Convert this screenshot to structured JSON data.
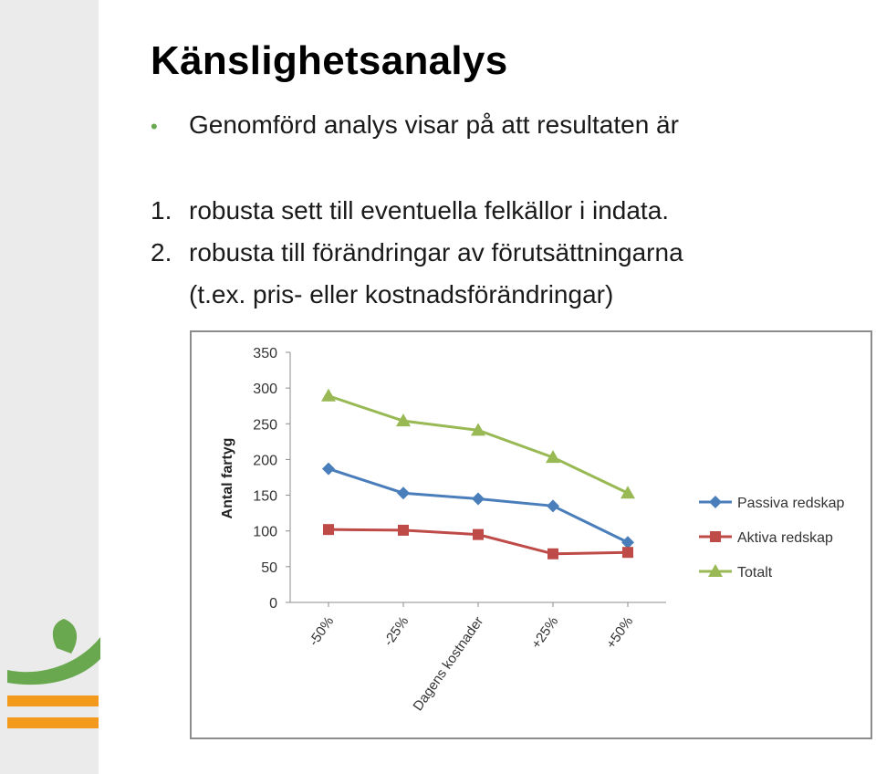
{
  "slide": {
    "title": "Känslighetsanalys",
    "bullet": "Genomförd analys visar på att resultaten är",
    "items": [
      {
        "num": "1.",
        "text": "robusta sett till eventuella felkällor i indata."
      },
      {
        "num": "2.",
        "text": "robusta till förändringar av förutsättningarna",
        "cont": "(t.ex. pris- eller kostnadsförändringar)"
      }
    ]
  },
  "colors": {
    "accent_green": "#6aa84f",
    "accent_orange": "#f39a1c"
  },
  "chart_data": {
    "type": "line",
    "categories": [
      "-50%",
      "-25%",
      "Dagens kostnader",
      "+25%",
      "+50%"
    ],
    "series": [
      {
        "name": "Passiva redskap",
        "values": [
          187,
          153,
          145,
          135,
          84
        ],
        "color": "#4a7ebb",
        "marker": "diamond"
      },
      {
        "name": "Aktiva redskap",
        "values": [
          102,
          101,
          95,
          68,
          70
        ],
        "color": "#be4b48",
        "marker": "square"
      },
      {
        "name": "Totalt",
        "values": [
          289,
          254,
          241,
          203,
          153
        ],
        "color": "#98b954",
        "marker": "triangle"
      }
    ],
    "ylabel": "Antal fartyg",
    "xlabel": "",
    "ylim": [
      0,
      350
    ],
    "yticks": [
      0,
      50,
      100,
      150,
      200,
      250,
      300,
      350
    ],
    "grid": false,
    "legend": "right"
  }
}
